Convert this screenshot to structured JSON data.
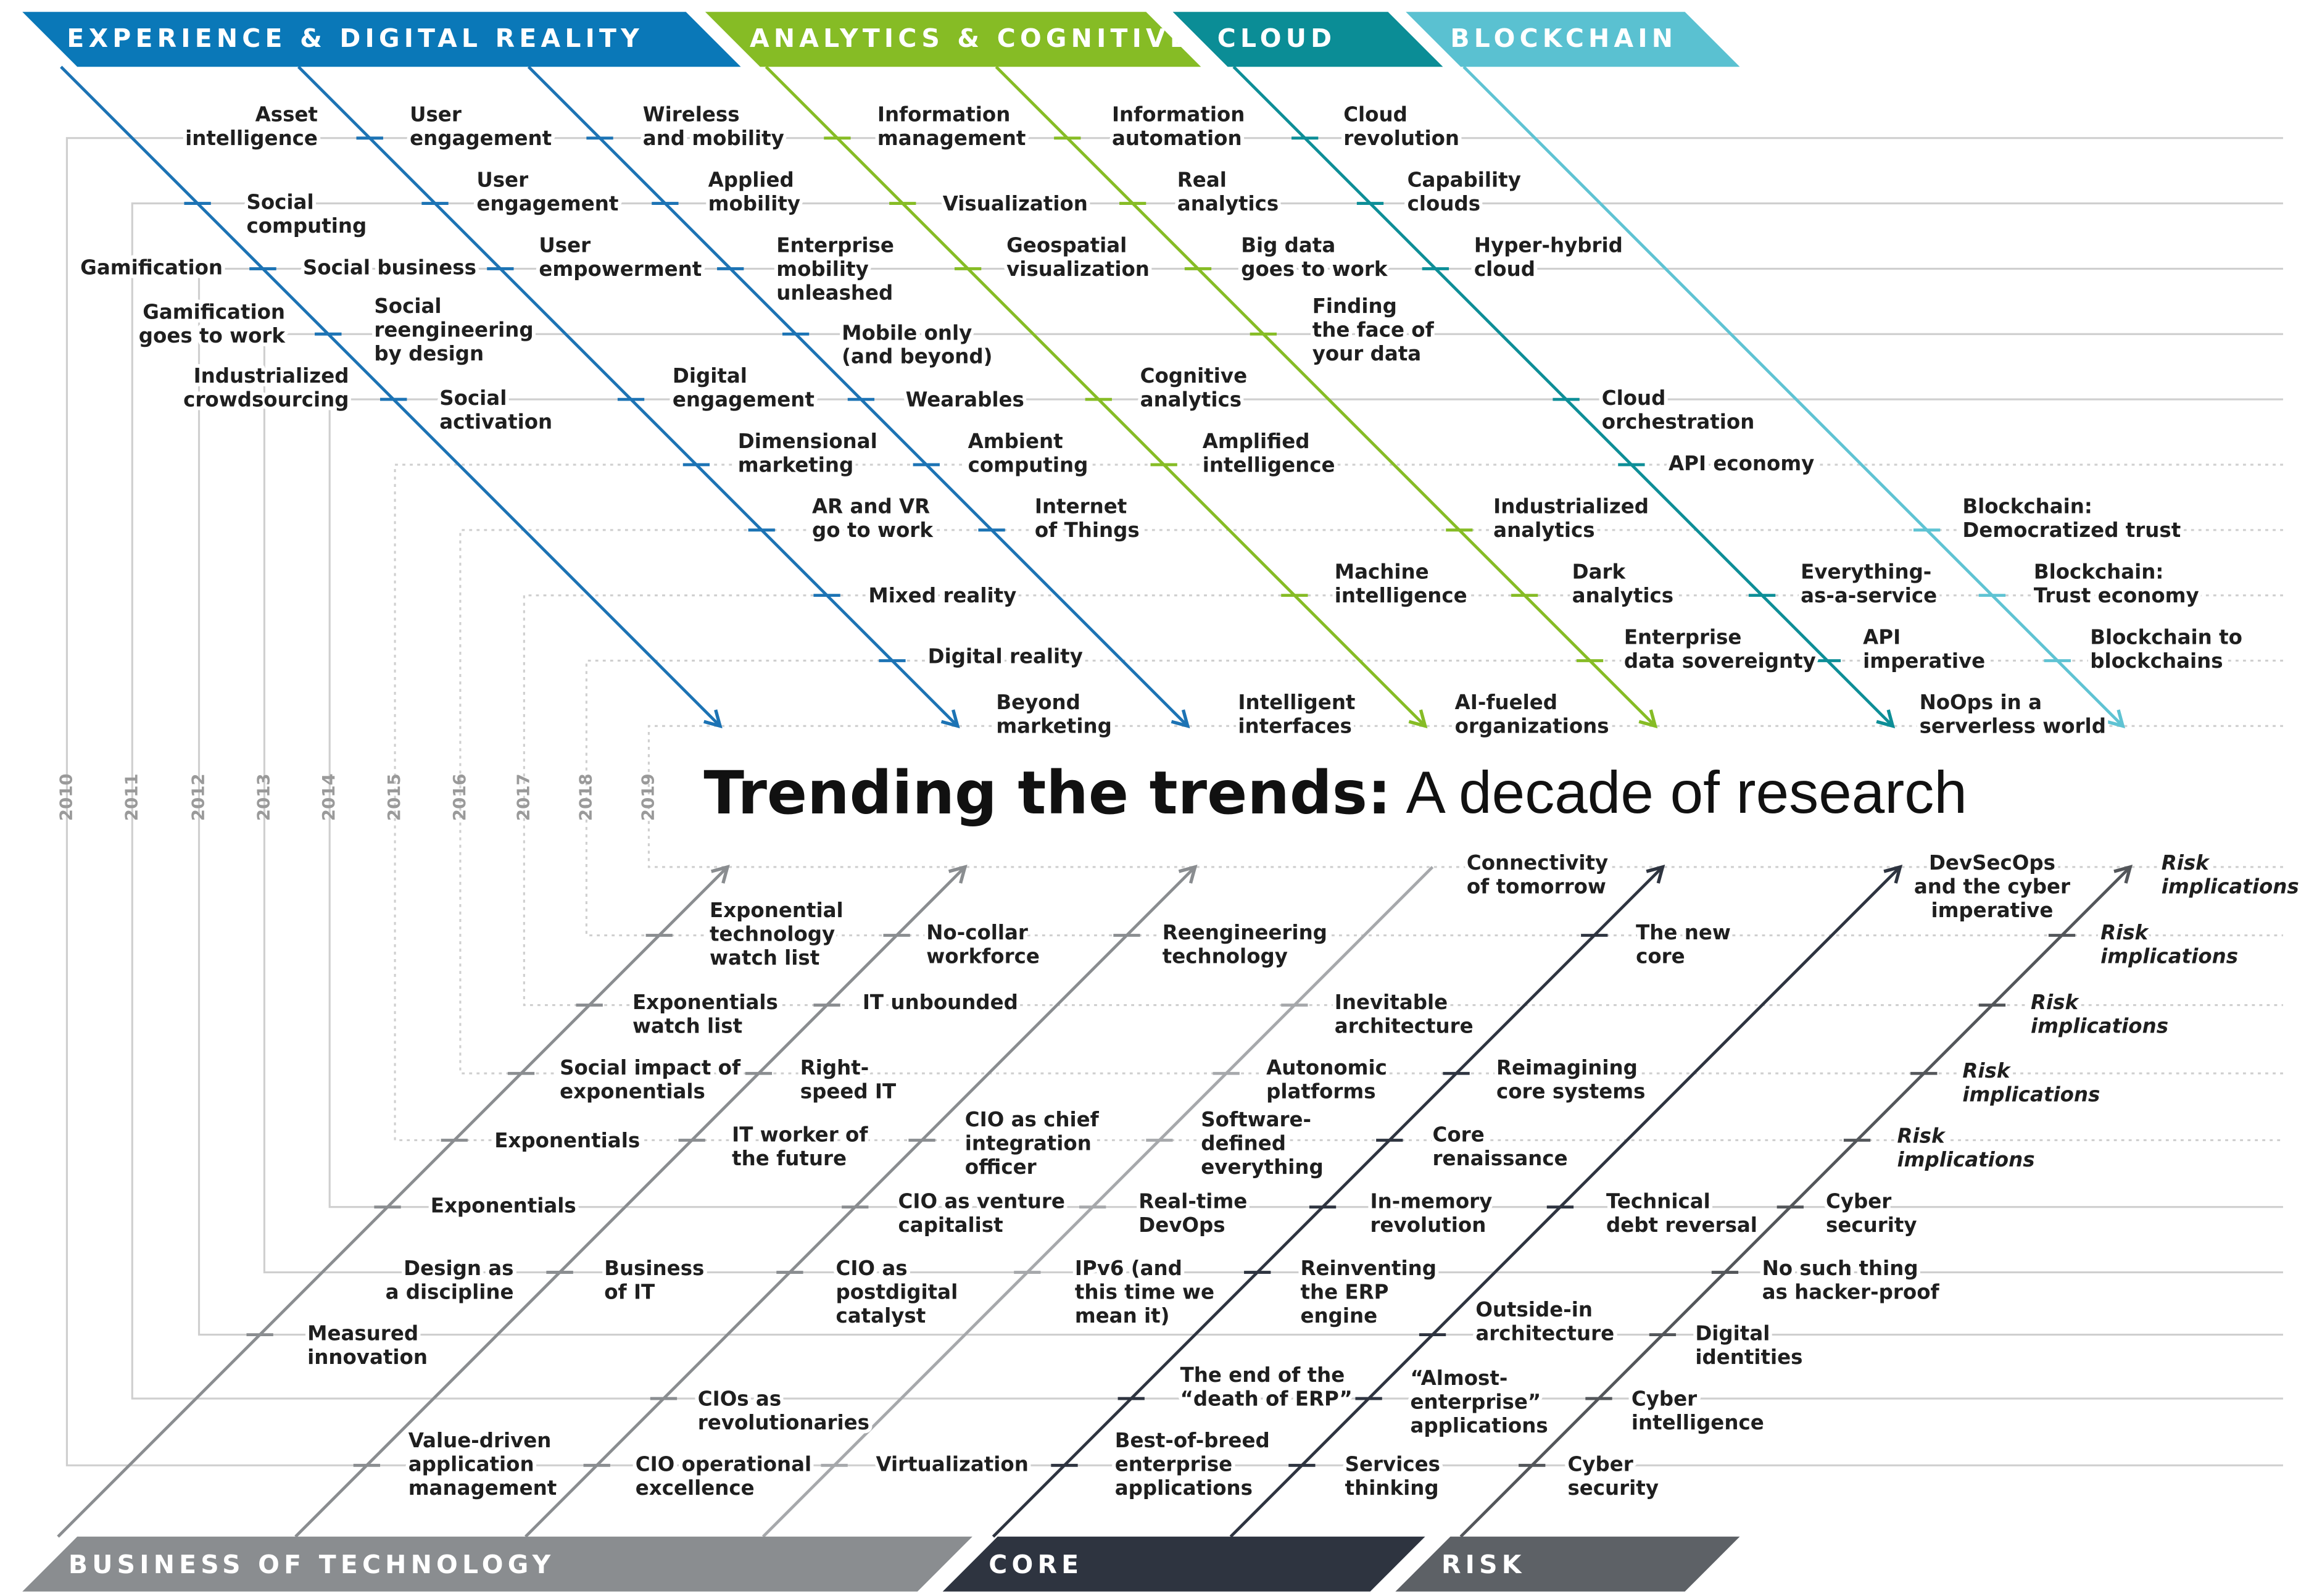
{
  "header": {
    "top_categories": [
      "EXPERIENCE & DIGITAL REALITY",
      "ANALYTICS & COGNITIVE",
      "CLOUD",
      "BLOCKCHAIN"
    ],
    "bottom_categories": [
      "BUSINESS OF TECHNOLOGY",
      "CORE",
      "RISK"
    ]
  },
  "title": {
    "emphasis": "Trending the trends:",
    "rest": "A decade of research"
  },
  "years": [
    "2010",
    "2011",
    "2012",
    "2013",
    "2014",
    "2015",
    "2016",
    "2017",
    "2018",
    "2019"
  ],
  "top_items": [
    [
      "Asset",
      "intelligence"
    ],
    [
      "User",
      "engagement"
    ],
    [
      "Wireless",
      "and mobility"
    ],
    [
      "Information",
      "management"
    ],
    [
      "Information",
      "automation"
    ],
    [
      "Cloud",
      "revolution"
    ],
    [
      "Social",
      "computing"
    ],
    [
      "User",
      "engagement"
    ],
    [
      "Applied",
      "mobility"
    ],
    [
      "Visualization"
    ],
    [
      "Real",
      "analytics"
    ],
    [
      "Capability",
      "clouds"
    ],
    [
      "Gamification"
    ],
    [
      "Social business"
    ],
    [
      "User",
      "empowerment"
    ],
    [
      "Enterprise",
      "mobility",
      "unleashed"
    ],
    [
      "Geospatial",
      "visualization"
    ],
    [
      "Big data",
      "goes to work"
    ],
    [
      "Hyper-hybrid",
      "cloud"
    ],
    [
      "Gamification",
      "goes to work"
    ],
    [
      "Social",
      "reengineering",
      "by design"
    ],
    [
      "Mobile only",
      "(and beyond)"
    ],
    [
      "Finding",
      "the face of",
      "your data"
    ],
    [
      "Industrialized",
      "crowdsourcing"
    ],
    [
      "Social",
      "activation"
    ],
    [
      "Digital",
      "engagement"
    ],
    [
      "Wearables"
    ],
    [
      "Cognitive",
      "analytics"
    ],
    [
      "Cloud",
      "orchestration"
    ],
    [
      "Dimensional",
      "marketing"
    ],
    [
      "Ambient",
      "computing"
    ],
    [
      "Amplified",
      "intelligence"
    ],
    [
      "API economy"
    ],
    [
      "AR and VR",
      "go to work"
    ],
    [
      "Internet",
      "of Things"
    ],
    [
      "Industrialized",
      "analytics"
    ],
    [
      "Blockchain:",
      "Democratized trust"
    ],
    [
      "Mixed reality"
    ],
    [
      "Machine",
      "intelligence"
    ],
    [
      "Dark",
      "analytics"
    ],
    [
      "Everything-",
      "as-a-service"
    ],
    [
      "Blockchain:",
      "Trust economy"
    ],
    [
      "Digital reality"
    ],
    [
      "Enterprise",
      "data sovereignty"
    ],
    [
      "API",
      "imperative"
    ],
    [
      "Blockchain to",
      "blockchains"
    ],
    [
      "Beyond",
      "marketing"
    ],
    [
      "Intelligent",
      "interfaces"
    ],
    [
      "AI-fueled",
      "organizations"
    ],
    [
      "NoOps in a",
      "serverless world"
    ]
  ],
  "bottom_items": [
    [
      "Connectivity",
      "of tomorrow"
    ],
    [
      "DevSecOps",
      "and the cyber",
      "imperative"
    ],
    [
      "Risk",
      "implications"
    ],
    [
      "Exponential",
      "technology",
      "watch list"
    ],
    [
      "No-collar",
      "workforce"
    ],
    [
      "Reengineering",
      "technology"
    ],
    [
      "The new",
      "core"
    ],
    [
      "Risk",
      "implications"
    ],
    [
      "Exponentials",
      "watch list"
    ],
    [
      "IT unbounded"
    ],
    [
      "Inevitable",
      "architecture"
    ],
    [
      "Risk",
      "implications"
    ],
    [
      "Social impact of",
      "exponentials"
    ],
    [
      "Right-",
      "speed IT"
    ],
    [
      "Autonomic",
      "platforms"
    ],
    [
      "Reimagining",
      "core systems"
    ],
    [
      "Risk",
      "implications"
    ],
    [
      "Exponentials"
    ],
    [
      "IT worker of",
      "the future"
    ],
    [
      "CIO as chief",
      "integration",
      "officer"
    ],
    [
      "Software-",
      "defined",
      "everything"
    ],
    [
      "Core",
      "renaissance"
    ],
    [
      "Risk",
      "implications"
    ],
    [
      "Exponentials"
    ],
    [
      "CIO as venture",
      "capitalist"
    ],
    [
      "Real-time",
      "DevOps"
    ],
    [
      "In-memory",
      "revolution"
    ],
    [
      "Technical",
      "debt reversal"
    ],
    [
      "Cyber",
      "security"
    ],
    [
      "Design as",
      "a discipline"
    ],
    [
      "Business",
      "of IT"
    ],
    [
      "CIO as",
      "postdigital",
      "catalyst"
    ],
    [
      "IPv6 (and",
      "this time we",
      "mean it)"
    ],
    [
      "Reinventing",
      "the ERP",
      "engine"
    ],
    [
      "No such thing",
      "as hacker-proof"
    ],
    [
      "Measured",
      "innovation"
    ],
    [
      "Outside-in",
      "architecture"
    ],
    [
      "Digital",
      "identities"
    ],
    [
      "CIOs as",
      "revolutionaries"
    ],
    [
      "The end of the",
      "“death of ERP”"
    ],
    [
      "“Almost-",
      "enterprise”",
      "applications"
    ],
    [
      "Cyber",
      "intelligence"
    ],
    [
      "Value-driven",
      "application",
      "management"
    ],
    [
      "CIO operational",
      "excellence"
    ],
    [
      "Virtualization"
    ],
    [
      "Best-of-breed",
      "enterprise",
      "applications"
    ],
    [
      "Services",
      "thinking"
    ],
    [
      "Cyber",
      "security"
    ]
  ]
}
